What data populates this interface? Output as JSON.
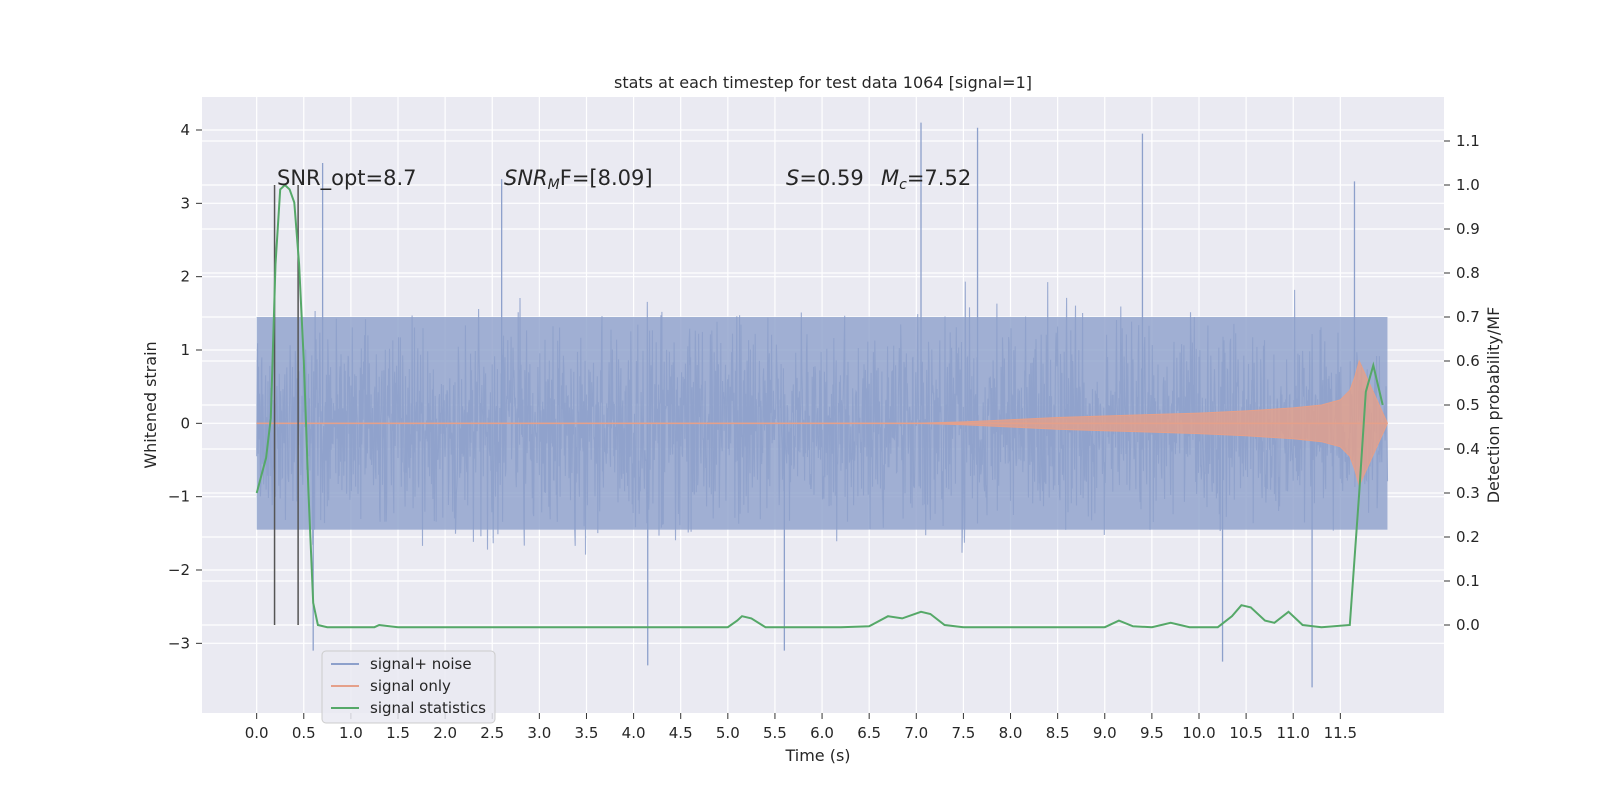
{
  "chart_data": {
    "type": "line",
    "title": "stats at each timestep for test data 1064 [signal=1]",
    "xlabel": "Time (s)",
    "ylabel_left": "Whitened strain",
    "ylabel_right": "Detection probability/MF",
    "xlim": [
      -0.58,
      12.6
    ],
    "ylim_left": [
      -3.95,
      4.45
    ],
    "ylim_right": [
      -0.2,
      1.2
    ],
    "xticks": [
      "0.0",
      "0.5",
      "1.0",
      "1.5",
      "2.0",
      "2.5",
      "3.0",
      "3.5",
      "4.0",
      "4.5",
      "5.0",
      "5.5",
      "6.0",
      "6.5",
      "7.0",
      "7.5",
      "8.0",
      "8.5",
      "9.0",
      "9.5",
      "10.0",
      "10.5",
      "11.0",
      "11.5"
    ],
    "yticks_left": [
      "−3",
      "−2",
      "−1",
      "0",
      "1",
      "2",
      "3",
      "4"
    ],
    "yticks_right": [
      "0.0",
      "0.1",
      "0.2",
      "0.3",
      "0.4",
      "0.5",
      "0.6",
      "0.7",
      "0.8",
      "0.9",
      "1.0",
      "1.1"
    ],
    "grid": true,
    "legend_position": "lower-left",
    "annotations": {
      "snr_opt": "SNR_opt=8.7",
      "snr_mf_italic": "SNR",
      "snr_mf_sub": "M",
      "snr_mf_rest": "F=[8.09]",
      "s_italic": "S",
      "s_rest": "=0.59",
      "mc_italic": "M",
      "mc_sub": "c",
      "mc_rest": "=7.52"
    },
    "vertical_markers": {
      "x": [
        0.19,
        0.44
      ],
      "y_range": [
        -2.75,
        3.25
      ],
      "color": "#555555"
    },
    "series": [
      {
        "name": "signal+ noise",
        "color": "#8da0cb",
        "x_range": [
          0.0,
          12.0
        ],
        "envelope_core": [
          -1.45,
          1.45
        ],
        "approx_peaks": [
          [
            0.7,
            3.55
          ],
          [
            2.6,
            3.33
          ],
          [
            7.05,
            4.1
          ],
          [
            7.65,
            4.03
          ],
          [
            9.4,
            3.95
          ],
          [
            11.65,
            3.3
          ],
          [
            4.15,
            -3.3
          ],
          [
            10.25,
            -3.25
          ],
          [
            11.2,
            -3.6
          ],
          [
            0.6,
            -3.1
          ],
          [
            5.6,
            -3.1
          ]
        ]
      },
      {
        "name": "signal only",
        "color": "#e5a08a",
        "x": [
          0.0,
          7.0,
          7.5,
          8.0,
          8.5,
          9.0,
          9.5,
          10.0,
          10.5,
          11.0,
          11.3,
          11.5,
          11.6,
          11.65,
          11.7,
          12.0
        ],
        "amplitude": [
          0.0,
          0.0,
          0.02,
          0.05,
          0.08,
          0.1,
          0.12,
          0.14,
          0.17,
          0.21,
          0.25,
          0.32,
          0.45,
          0.62,
          0.85,
          0.0
        ]
      },
      {
        "name": "signal statistics",
        "color": "#55a868",
        "axis": "right",
        "x": [
          0.0,
          0.05,
          0.1,
          0.15,
          0.2,
          0.25,
          0.3,
          0.35,
          0.4,
          0.45,
          0.5,
          0.55,
          0.6,
          0.65,
          0.75,
          1.0,
          1.25,
          1.3,
          1.5,
          3.0,
          4.5,
          5.0,
          5.1,
          5.15,
          5.25,
          5.4,
          5.8,
          6.2,
          6.5,
          6.7,
          6.85,
          7.05,
          7.15,
          7.3,
          7.5,
          9.0,
          9.15,
          9.3,
          9.5,
          9.7,
          9.9,
          10.2,
          10.35,
          10.45,
          10.55,
          10.7,
          10.8,
          10.95,
          11.1,
          11.3,
          11.6,
          11.7,
          11.77,
          11.85,
          11.95
        ],
        "y": [
          0.3,
          0.34,
          0.38,
          0.47,
          0.82,
          0.99,
          1.0,
          0.99,
          0.96,
          0.82,
          0.6,
          0.3,
          0.05,
          0.0,
          -0.005,
          -0.005,
          -0.005,
          0.0,
          -0.005,
          -0.005,
          -0.005,
          -0.005,
          0.01,
          0.02,
          0.015,
          -0.005,
          -0.005,
          -0.005,
          -0.003,
          0.02,
          0.015,
          0.03,
          0.025,
          0.0,
          -0.005,
          -0.005,
          0.01,
          -0.003,
          -0.005,
          0.005,
          -0.005,
          -0.005,
          0.02,
          0.045,
          0.04,
          0.01,
          0.005,
          0.03,
          0.0,
          -0.005,
          0.0,
          0.3,
          0.53,
          0.59,
          0.5
        ]
      }
    ]
  }
}
